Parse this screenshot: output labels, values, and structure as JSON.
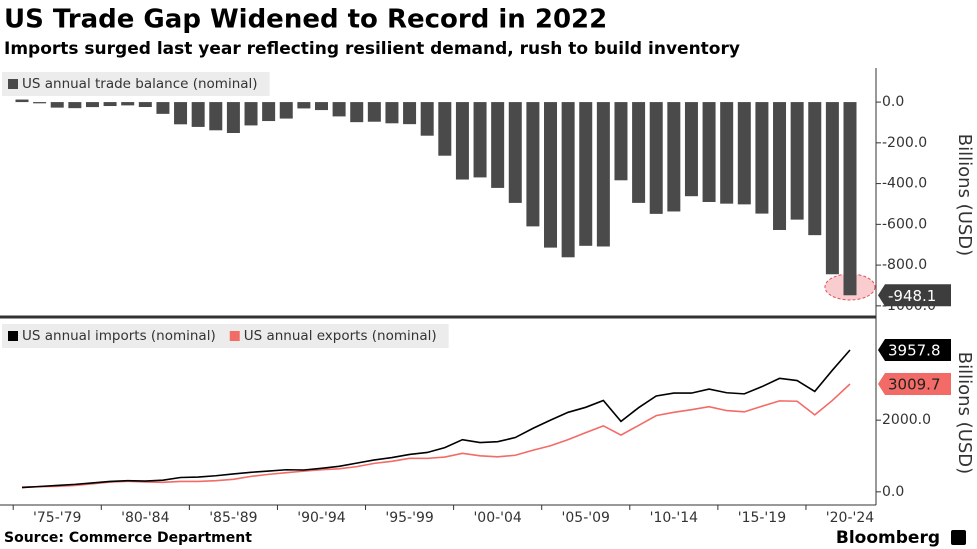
{
  "title": "US Trade Gap Widened to Record in 2022",
  "subtitle": "Imports surged last year reflecting resilient demand, rush to build inventory",
  "source": "Source: Commerce Department",
  "brand": "Bloomberg",
  "x_labels": [
    "'75-'79",
    "'80-'84",
    "'85-'89",
    "'90-'94",
    "'95-'99",
    "'00-'04",
    "'05-'09",
    "'10-'14",
    "'15-'19",
    "'20-'24"
  ],
  "chart_data": [
    {
      "type": "bar",
      "y_label": "Billions (USD)",
      "series": [
        {
          "name": "US annual trade balance (nominal)",
          "color": "#4a4a4a",
          "values": [
            12.4,
            -6.1,
            -27.2,
            -29.8,
            -24.6,
            -19.4,
            -16.2,
            -24.2,
            -57.8,
            -109.1,
            -121.9,
            -138.5,
            -151.7,
            -114.6,
            -93.1,
            -80.9,
            -31.1,
            -39.2,
            -70.3,
            -98.5,
            -96.4,
            -104.1,
            -108.3,
            -165.0,
            -263.2,
            -380.1,
            -369.7,
            -421.2,
            -494.8,
            -610.0,
            -714.2,
            -761.7,
            -705.4,
            -708.7,
            -383.8,
            -494.7,
            -548.6,
            -536.8,
            -461.9,
            -490.3,
            -498.5,
            -502.0,
            -547.3,
            -627.7,
            -576.9,
            -653.0,
            -845.0,
            -948.1
          ]
        }
      ],
      "ylim": [
        -1040,
        128
      ],
      "yticks": [
        {
          "value": 0,
          "label": "0.0"
        },
        {
          "value": -200,
          "label": "-200.0"
        },
        {
          "value": -400,
          "label": "-400.0"
        },
        {
          "value": -600,
          "label": "-600.0"
        },
        {
          "value": -800,
          "label": "-800.0"
        },
        {
          "value": -1000,
          "label": "-1000.0"
        }
      ]
    },
    {
      "type": "line",
      "y_label": "Billions (USD)",
      "series": [
        {
          "name": "US annual imports (nominal)",
          "color": "#000000",
          "values": [
            120.2,
            148.8,
            179.5,
            208.2,
            248.7,
            291.2,
            310.6,
            299.4,
            323.9,
            400.3,
            411.0,
            448.5,
            500.6,
            545.7,
            580.1,
            616.1,
            609.4,
            656.1,
            713.2,
            801.8,
            890.8,
            955.7,
            1042.8,
            1098.5,
            1233.1,
            1455.4,
            1375.4,
            1399.9,
            1515.2,
            1771.5,
            2000.2,
            2219.3,
            2358.9,
            2550.3,
            1966.9,
            2348.3,
            2675.6,
            2755.7,
            2755.4,
            2867.0,
            2765.4,
            2734.1,
            2935.6,
            3166.2,
            3105.2,
            2801.6,
            3395.0,
            3957.8
          ]
        },
        {
          "name": "US annual exports (nominal)",
          "color": "#f36b66",
          "values": [
            132.6,
            142.7,
            152.3,
            178.4,
            224.1,
            271.8,
            294.4,
            275.2,
            266.1,
            291.2,
            289.1,
            310.0,
            348.9,
            431.1,
            487.0,
            535.2,
            578.3,
            616.9,
            642.9,
            703.3,
            794.4,
            851.6,
            934.5,
            933.5,
            969.9,
            1075.3,
            1005.7,
            978.7,
            1020.4,
            1161.5,
            1286.0,
            1457.6,
            1653.5,
            1841.6,
            1583.1,
            1853.6,
            2127.0,
            2218.9,
            2293.5,
            2376.7,
            2266.9,
            2232.1,
            2388.3,
            2538.5,
            2528.3,
            2148.6,
            2550.0,
            3009.7
          ]
        }
      ],
      "ylim": [
        -200,
        4600
      ],
      "yticks": [
        {
          "value": 0,
          "label": "0.0"
        },
        {
          "value": 2000,
          "label": "2000.0"
        }
      ]
    }
  ]
}
